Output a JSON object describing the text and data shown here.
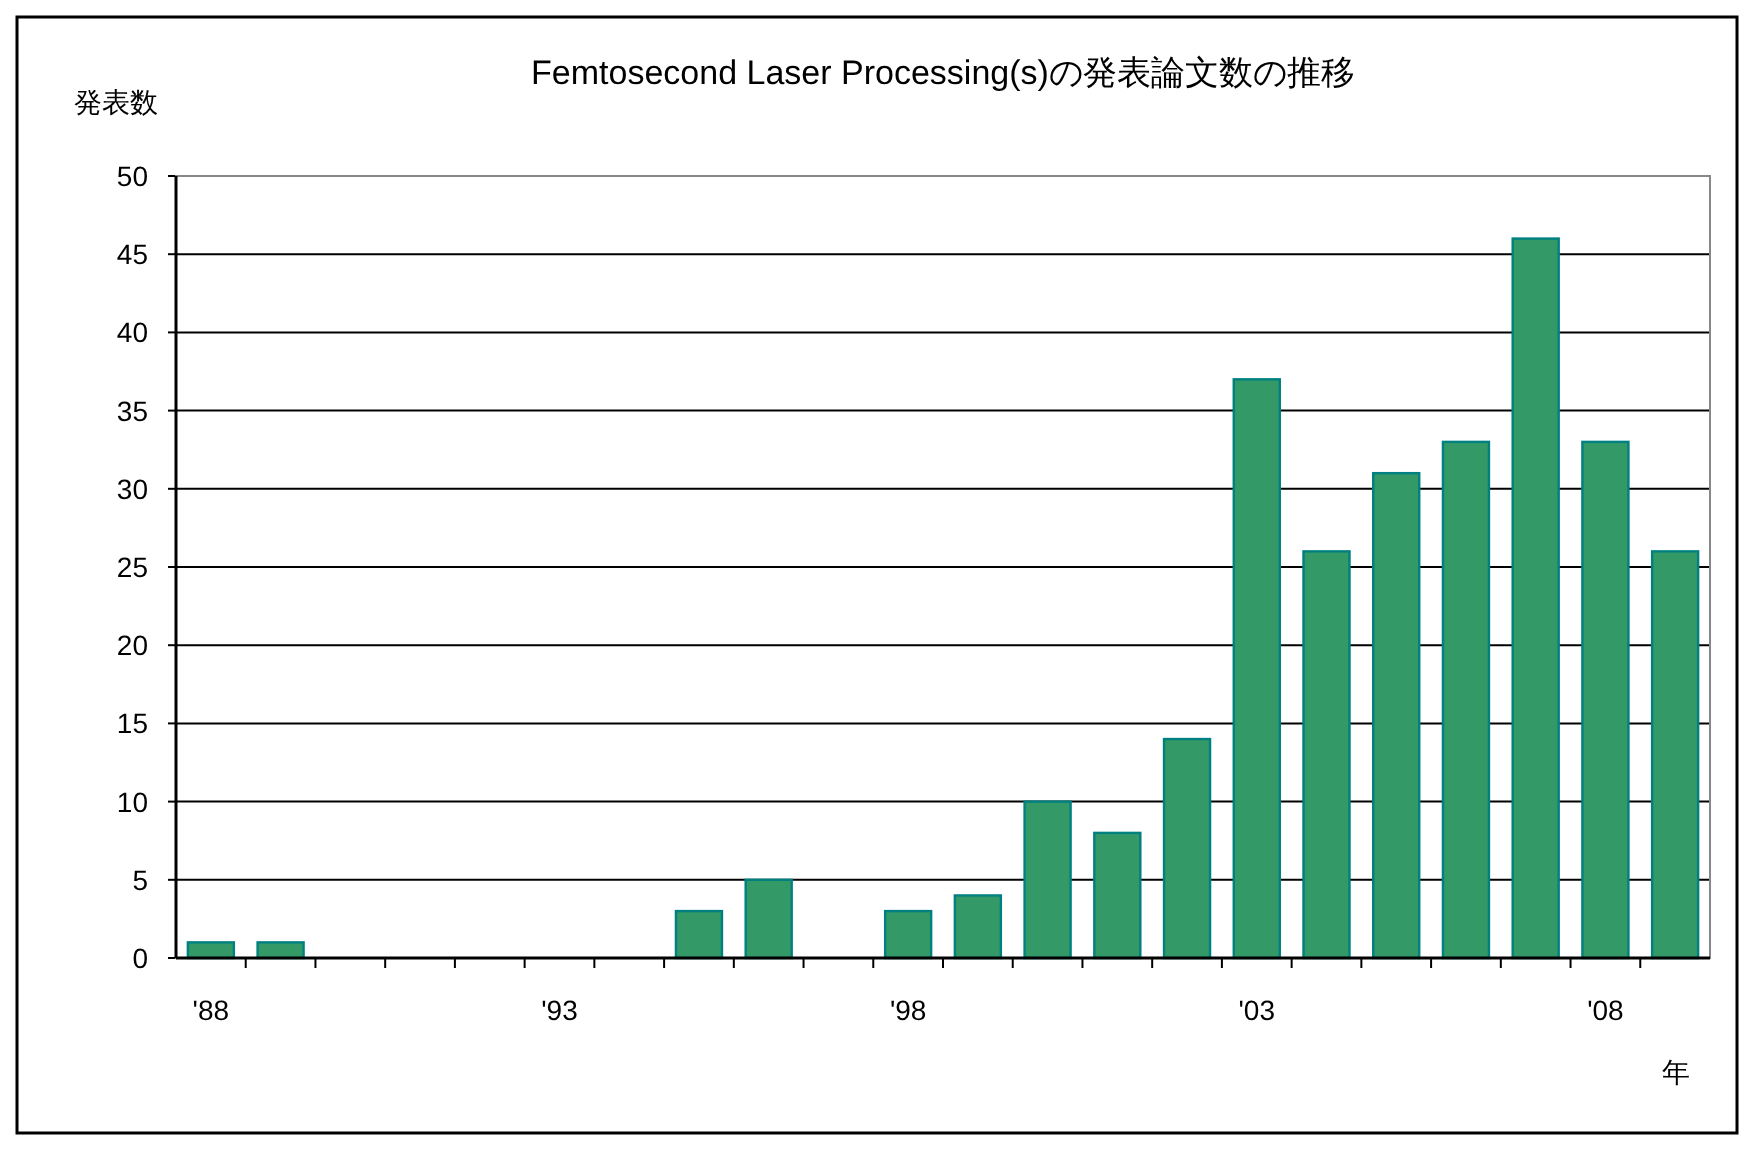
{
  "chart_data": {
    "type": "bar",
    "title": "Femtosecond Laser Processing(s)の発表論文数の推移",
    "ylabel": "発表数",
    "xlabel": "年",
    "categories": [
      "'88",
      null,
      null,
      null,
      null,
      "'93",
      null,
      null,
      null,
      null,
      "'98",
      null,
      null,
      null,
      null,
      "'03",
      null,
      null,
      null,
      null,
      "'08",
      null
    ],
    "values": [
      1,
      1,
      0,
      0,
      0,
      0,
      0,
      3,
      5,
      0,
      3,
      4,
      10,
      8,
      14,
      37,
      26,
      31,
      33,
      46,
      33,
      26
    ],
    "color": "#339966",
    "ylim": [
      0,
      50
    ],
    "yticks": [
      0,
      5,
      10,
      15,
      20,
      25,
      30,
      35,
      40,
      45,
      50
    ],
    "grid": "y"
  }
}
